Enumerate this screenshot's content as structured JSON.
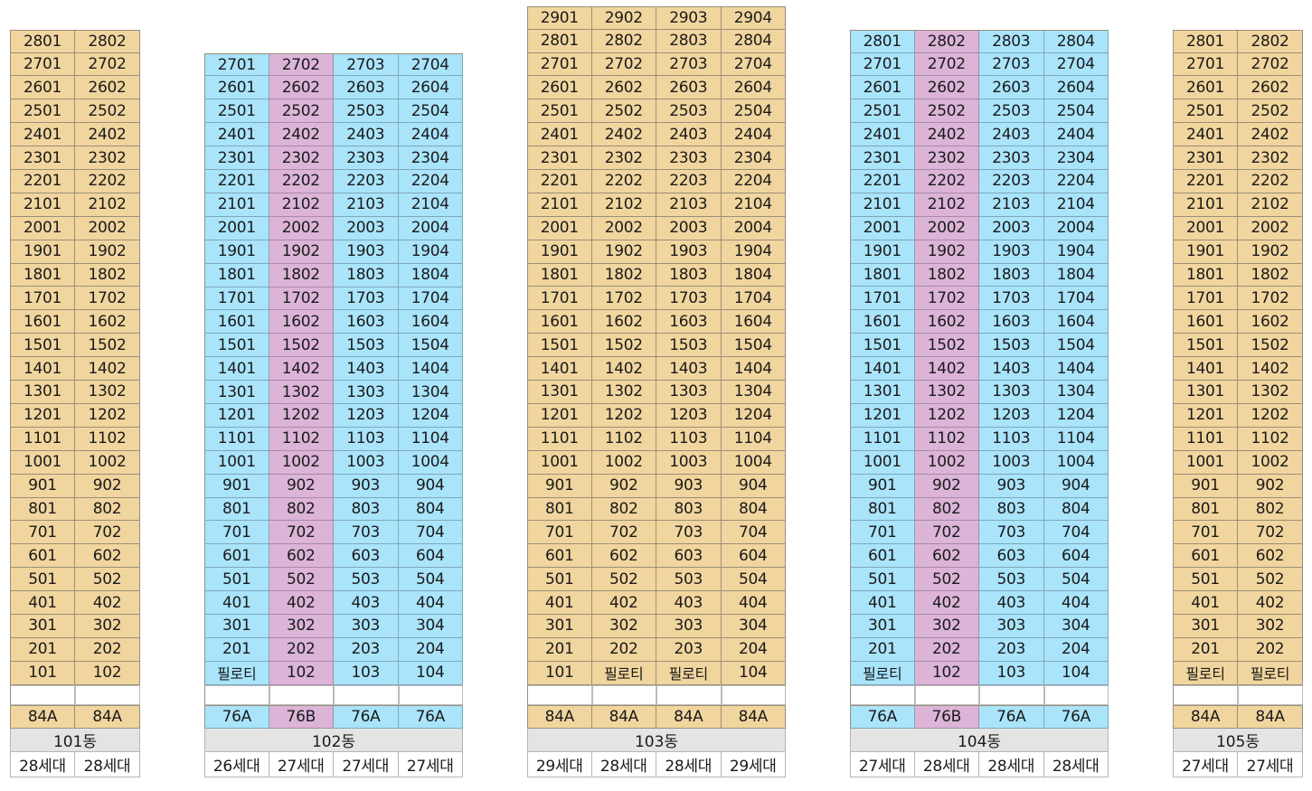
{
  "buildings": [
    {
      "name": "101동",
      "top_floor": 28,
      "units": [
        {
          "line": "01",
          "type": "84A",
          "households": "28세대",
          "color": "tan",
          "lowest": 1
        },
        {
          "line": "02",
          "type": "84A",
          "households": "28세대",
          "color": "tan",
          "lowest": 1
        }
      ]
    },
    {
      "name": "102동",
      "top_floor": 27,
      "units": [
        {
          "line": "01",
          "type": "76A",
          "households": "26세대",
          "color": "blue",
          "lowest": 2,
          "ground": "필로티"
        },
        {
          "line": "02",
          "type": "76B",
          "households": "27세대",
          "color": "pink",
          "lowest": 1
        },
        {
          "line": "03",
          "type": "76A",
          "households": "27세대",
          "color": "blue",
          "lowest": 1
        },
        {
          "line": "04",
          "type": "76A",
          "households": "27세대",
          "color": "blue",
          "lowest": 1
        }
      ]
    },
    {
      "name": "103동",
      "top_floor": 29,
      "units": [
        {
          "line": "01",
          "type": "84A",
          "households": "29세대",
          "color": "tan",
          "lowest": 1
        },
        {
          "line": "02",
          "type": "84A",
          "households": "28세대",
          "color": "tan",
          "lowest": 2,
          "ground": "필로티"
        },
        {
          "line": "03",
          "type": "84A",
          "households": "28세대",
          "color": "tan",
          "lowest": 2,
          "ground": "필로티"
        },
        {
          "line": "04",
          "type": "84A",
          "households": "29세대",
          "color": "tan",
          "lowest": 1
        }
      ]
    },
    {
      "name": "104동",
      "top_floor": 28,
      "units": [
        {
          "line": "01",
          "type": "76A",
          "households": "27세대",
          "color": "blue",
          "lowest": 2,
          "ground": "필로티"
        },
        {
          "line": "02",
          "type": "76B",
          "households": "28세대",
          "color": "pink",
          "lowest": 1
        },
        {
          "line": "03",
          "type": "76A",
          "households": "28세대",
          "color": "blue",
          "lowest": 1
        },
        {
          "line": "04",
          "type": "76A",
          "households": "28세대",
          "color": "blue",
          "lowest": 1
        }
      ]
    },
    {
      "name": "105동",
      "top_floor": 28,
      "units": [
        {
          "line": "01",
          "type": "84A",
          "households": "27세대",
          "color": "tan",
          "lowest": 2,
          "ground": "필로티"
        },
        {
          "line": "02",
          "type": "84A",
          "households": "27세대",
          "color": "tan",
          "lowest": 2,
          "ground": "필로티"
        }
      ]
    }
  ]
}
